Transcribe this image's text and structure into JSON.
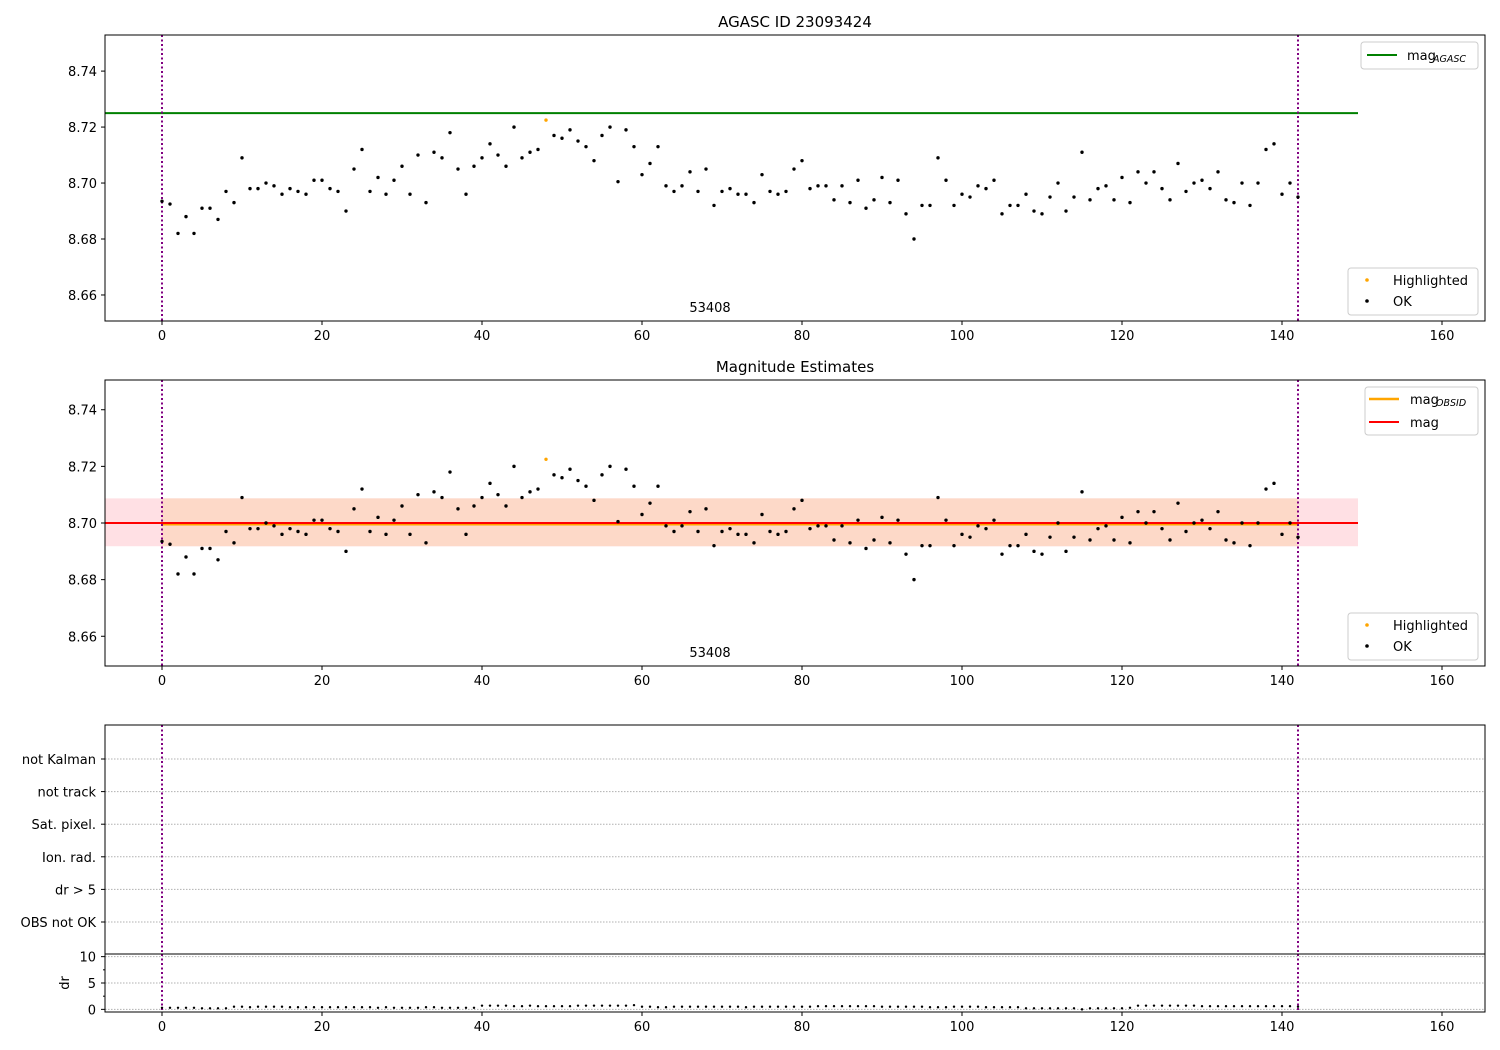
{
  "chart_data": [
    {
      "type": "scatter",
      "title": "AGASC ID 23093424",
      "xlim": [
        -7.1,
        165.4
      ],
      "ylim": [
        8.6507,
        8.7529
      ],
      "xticks": [
        0,
        20,
        40,
        60,
        80,
        100,
        120,
        140,
        160
      ],
      "yticks": [
        8.66,
        8.68,
        8.7,
        8.72,
        8.74
      ],
      "annotation": "53408",
      "annotation_x": 68.5,
      "vlines": [
        0,
        142
      ],
      "mag_agasc": 8.725,
      "mag_agasc_range": [
        -7.1,
        149.5
      ],
      "legend_top": {
        "label": "mag",
        "sub": "AGASC",
        "placement": "upper right",
        "color": "#008000"
      },
      "legend_bottom": {
        "placement": "lower right",
        "items": [
          {
            "label": "Highlighted",
            "color": "#ffa500"
          },
          {
            "label": "OK",
            "color": "#000000"
          }
        ]
      },
      "highlighted": [
        {
          "x": 48,
          "y": 8.7225
        }
      ]
    },
    {
      "type": "scatter",
      "title": "Magnitude Estimates",
      "xlim": [
        -7.1,
        165.4
      ],
      "ylim": [
        8.6495,
        8.7505
      ],
      "xticks": [
        0,
        20,
        40,
        60,
        80,
        100,
        120,
        140,
        160
      ],
      "yticks": [
        8.66,
        8.68,
        8.7,
        8.72,
        8.74
      ],
      "annotation": "53408",
      "mag": 8.7,
      "mag_band": [
        8.6918,
        8.7087
      ],
      "mag_band_range": [
        -7.1,
        149.5
      ],
      "mag_obsid": 8.7,
      "mag_obsid_band": [
        8.6918,
        8.7087
      ],
      "mag_obsid_range": [
        0,
        142
      ],
      "legend_top": {
        "items": [
          {
            "label": "mag",
            "sub": "OBSID",
            "color": "#ffa500"
          },
          {
            "label": "mag",
            "sub": "",
            "color": "#ff0000"
          }
        ],
        "placement": "upper right"
      },
      "legend_bottom": {
        "placement": "lower right",
        "items": [
          {
            "label": "Highlighted",
            "color": "#ffa500"
          },
          {
            "label": "OK",
            "color": "#000000"
          }
        ]
      }
    },
    {
      "type": "scatter",
      "title": "",
      "flag_labels": [
        "not Kalman",
        "not track",
        "Sat. pixel.",
        "Ion. rad.",
        "dr > 5",
        "OBS not OK"
      ],
      "dr_ylabel": "dr",
      "dr_yticks": [
        0,
        5,
        10
      ],
      "dr_ylim": [
        -0.5,
        10.5
      ],
      "xticks": [
        0,
        20,
        40,
        60,
        80,
        100,
        120,
        140,
        160
      ]
    }
  ],
  "series": {
    "mag": [
      8.6935,
      8.6925,
      8.682,
      8.688,
      8.682,
      8.691,
      8.691,
      8.687,
      8.697,
      8.693,
      8.709,
      8.698,
      8.698,
      8.7,
      8.699,
      8.696,
      8.698,
      8.697,
      8.696,
      8.701,
      8.701,
      8.698,
      8.697,
      8.69,
      8.705,
      8.712,
      8.697,
      8.702,
      8.696,
      8.701,
      8.706,
      8.696,
      8.71,
      8.693,
      8.711,
      8.709,
      8.718,
      8.705,
      8.696,
      8.706,
      8.709,
      8.714,
      8.71,
      8.706,
      8.72,
      8.709,
      8.711,
      8.712,
      8.7225,
      8.717,
      8.716,
      8.719,
      8.715,
      8.713,
      8.708,
      8.717,
      8.72,
      8.7005,
      8.719,
      8.713,
      8.703,
      8.707,
      8.713,
      8.699,
      8.697,
      8.699,
      8.704,
      8.697,
      8.705,
      8.692,
      8.697,
      8.698,
      8.696,
      8.696,
      8.693,
      8.703,
      8.697,
      8.696,
      8.697,
      8.705,
      8.708,
      8.698,
      8.699,
      8.699,
      8.694,
      8.699,
      8.693,
      8.701,
      8.691,
      8.694,
      8.702,
      8.693,
      8.701,
      8.689,
      8.68,
      8.692,
      8.692,
      8.709,
      8.701,
      8.692,
      8.696,
      8.695,
      8.699,
      8.698,
      8.701,
      8.689,
      8.692,
      8.692,
      8.696,
      8.69,
      8.689,
      8.695,
      8.7,
      8.69,
      8.695,
      8.711,
      8.694,
      8.698,
      8.699,
      8.694,
      8.702,
      8.693,
      8.704,
      8.7,
      8.704,
      8.698,
      8.694,
      8.707,
      8.697,
      8.7,
      8.701,
      8.698,
      8.704,
      8.694,
      8.693,
      8.7,
      8.692,
      8.7,
      8.712,
      8.714,
      8.696,
      8.7,
      8.695
    ],
    "dr": [
      0.3,
      0.3,
      0.3,
      0.3,
      0.3,
      0.2,
      0.2,
      0.2,
      0.2,
      0.5,
      0.5,
      0.4,
      0.5,
      0.5,
      0.5,
      0.5,
      0.4,
      0.4,
      0.4,
      0.4,
      0.4,
      0.4,
      0.4,
      0.4,
      0.4,
      0.4,
      0.4,
      0.3,
      0.4,
      0.3,
      0.3,
      0.3,
      0.3,
      0.4,
      0.4,
      0.3,
      0.3,
      0.3,
      0.3,
      0.3,
      0.7,
      0.7,
      0.7,
      0.7,
      0.6,
      0.6,
      0.7,
      0.6,
      0.6,
      0.6,
      0.6,
      0.6,
      0.7,
      0.7,
      0.7,
      0.7,
      0.7,
      0.7,
      0.7,
      0.8,
      0.5,
      0.5,
      0.4,
      0.4,
      0.5,
      0.5,
      0.5,
      0.5,
      0.5,
      0.5,
      0.5,
      0.5,
      0.5,
      0.4,
      0.5,
      0.5,
      0.5,
      0.5,
      0.5,
      0.5,
      0.5,
      0.5,
      0.6,
      0.6,
      0.6,
      0.6,
      0.6,
      0.6,
      0.6,
      0.6,
      0.5,
      0.5,
      0.5,
      0.5,
      0.5,
      0.5,
      0.4,
      0.4,
      0.4,
      0.5,
      0.5,
      0.5,
      0.5,
      0.4,
      0.4,
      0.4,
      0.4,
      0.4,
      0.2,
      0.2,
      0.2,
      0.2,
      0.2,
      0.2,
      0.2,
      0.0,
      0.2,
      0.2,
      0.2,
      0.2,
      0.2,
      0.3,
      0.7,
      0.7,
      0.7,
      0.7,
      0.7,
      0.7,
      0.7,
      0.7,
      0.6,
      0.6,
      0.6,
      0.6,
      0.6,
      0.6,
      0.6,
      0.6,
      0.6,
      0.6,
      0.6,
      0.6,
      0.5
    ],
    "highlighted_index": [
      48
    ]
  },
  "colors": {
    "vline": "#800080",
    "ok": "#000000",
    "highlighted": "#ffa500",
    "agasc": "#008000",
    "mag": "#ff0000",
    "obsid": "#ffa500",
    "band_mag": "#ffe0e4",
    "band_obsid": "#fdd8c4"
  }
}
